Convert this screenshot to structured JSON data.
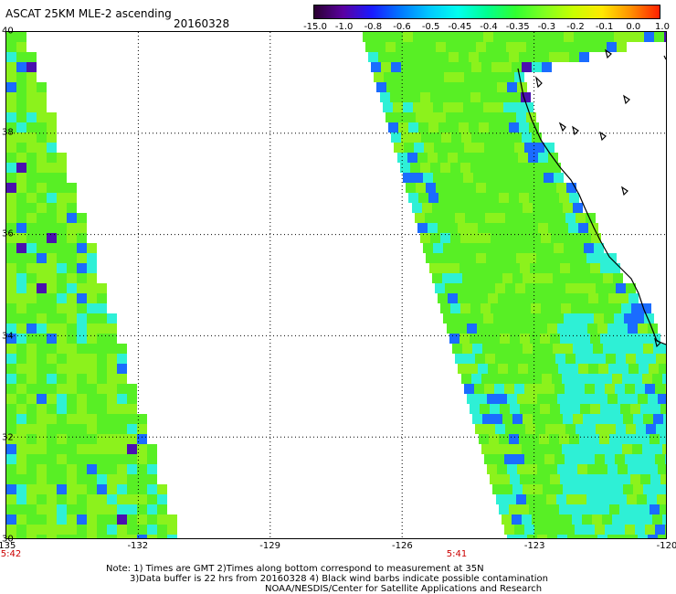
{
  "header": {
    "title": "ASCAT 25KM MLE-2 ascending",
    "date": "20160328"
  },
  "colorbar": {
    "ticks": [
      "-15.0",
      "-1.0",
      "-0.8",
      "-0.6",
      "-0.5",
      "-0.45",
      "-0.4",
      "-0.35",
      "-0.3",
      "-0.2",
      "-0.1",
      "0.0",
      "1.0"
    ],
    "gradient_colors": [
      "#2a0030",
      "#5a00a0",
      "#1a1aff",
      "#0078ff",
      "#00c8ff",
      "#00ffee",
      "#00ff90",
      "#30ff30",
      "#80ff20",
      "#c8ff00",
      "#ffe800",
      "#ff9000",
      "#ff2000"
    ]
  },
  "map": {
    "lat_labels": [
      "40",
      "38",
      "36",
      "34",
      "32",
      "30"
    ],
    "lon_labels": [
      "-135",
      "-132",
      "-129",
      "-126",
      "-123",
      "-120"
    ],
    "time_labels": [
      "5:42",
      "5:41"
    ],
    "lon_range": [
      -135,
      -120
    ],
    "lat_range": [
      30,
      40
    ],
    "swath_colors": {
      "base": "#58ef25",
      "light": "#8cf21c",
      "cyan": "#2ef0d6",
      "blue": "#1a6cff",
      "dark": "#4a10b0"
    }
  },
  "notes": {
    "line1": "Note: 1) Times are GMT 2)Times along bottom correspond to measurement at 35N",
    "line2": "3)Data buffer is 22 hrs from 20160328 4) Black wind barbs indicate possible contamination",
    "line3": "NOAA/NESDIS/Center for Satellite Applications and Research"
  }
}
